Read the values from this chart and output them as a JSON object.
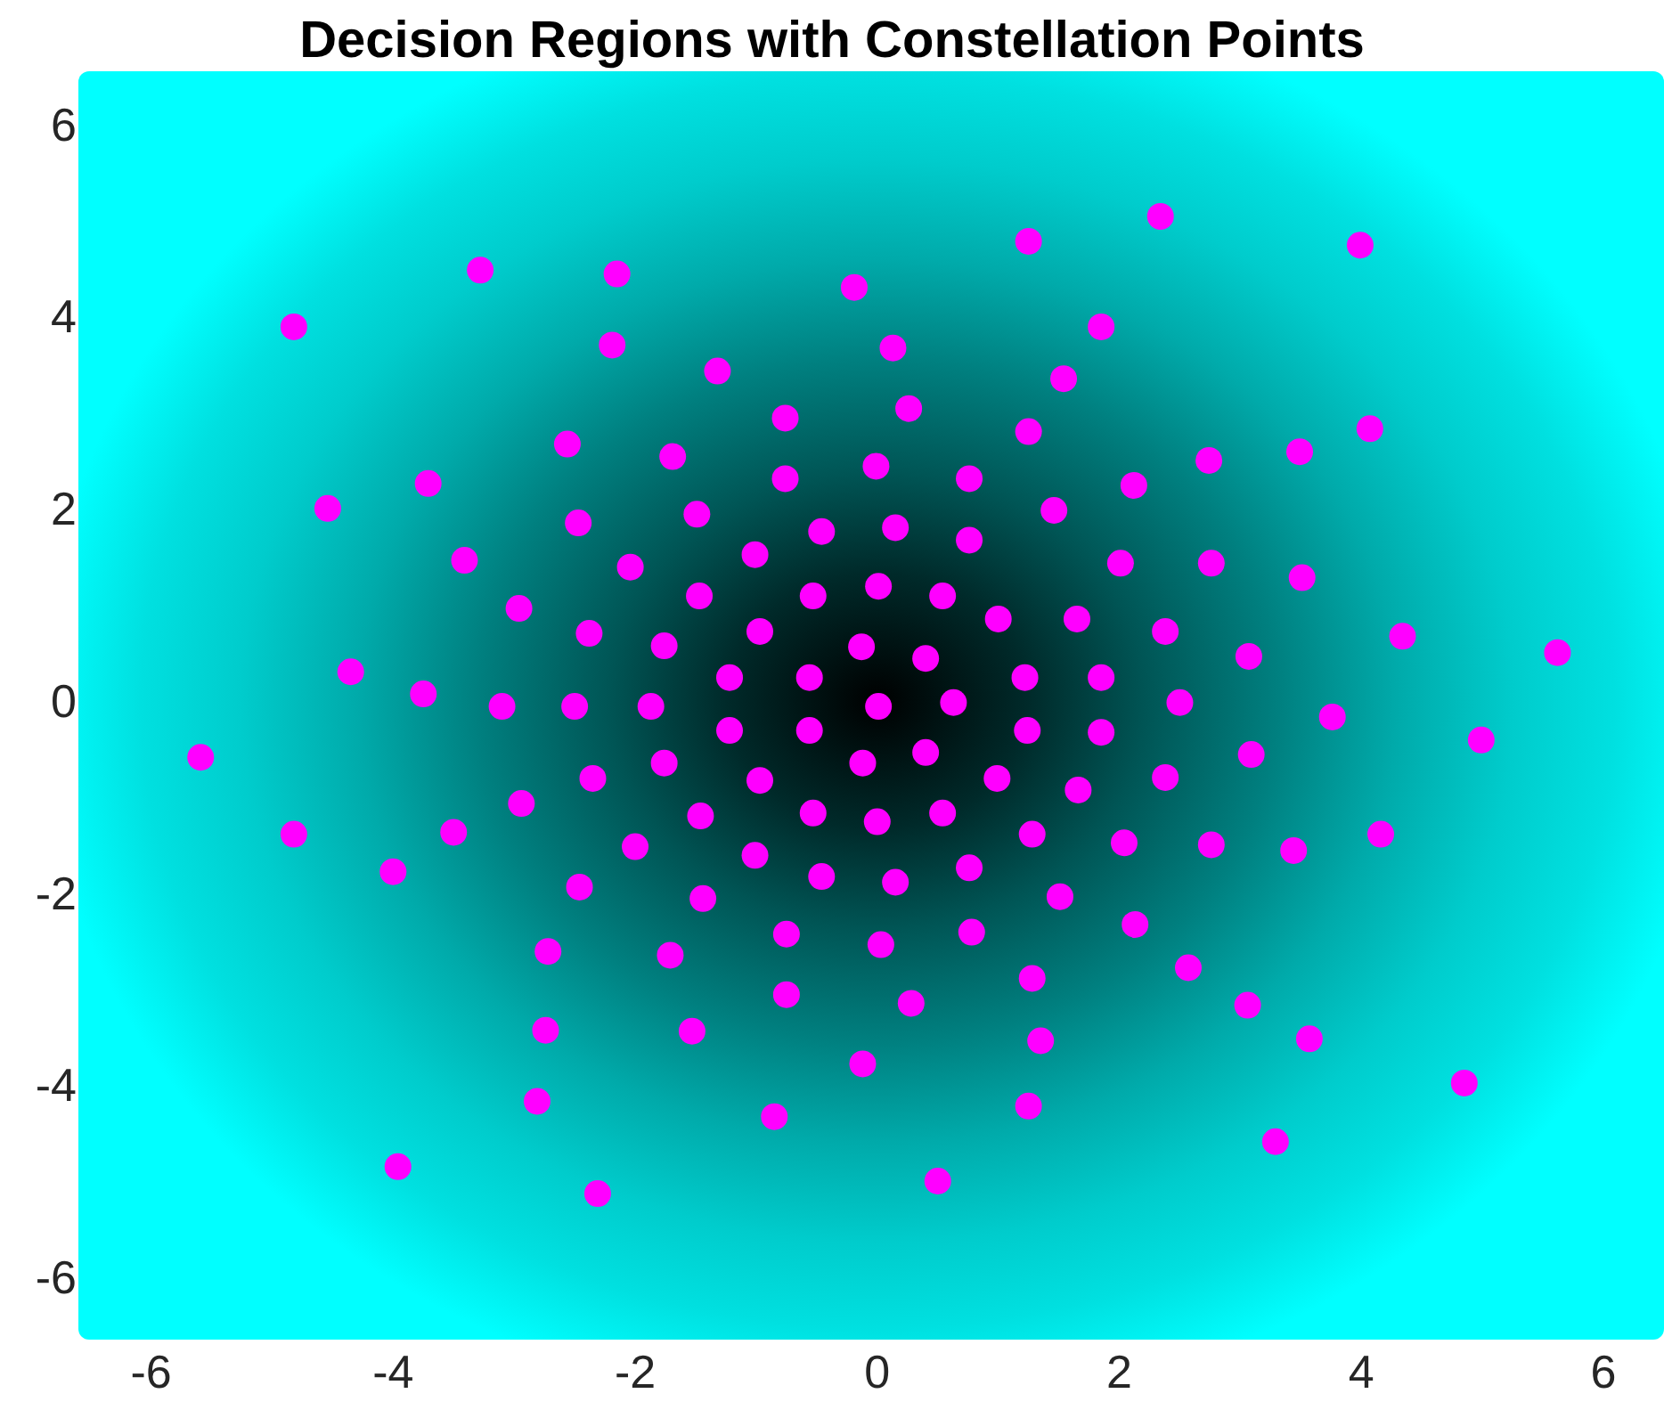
{
  "chart_data": {
    "type": "scatter",
    "title": "Decision Regions with Constellation Points",
    "x": [
      -4.82,
      -3.28,
      -2.15,
      -0.19,
      1.25,
      2.34,
      3.99,
      -2.19,
      -1.32,
      0.13,
      1.85,
      1.54,
      -2.56,
      -1.69,
      -0.76,
      0.26,
      1.25,
      2.74,
      3.49,
      4.07,
      -4.54,
      -3.71,
      -3.41,
      -2.47,
      -2.04,
      -1.49,
      -0.76,
      -0.01,
      0.76,
      1.46,
      2.12,
      0.15,
      -0.46,
      -1.01,
      0.76,
      2.01,
      2.76,
      3.51,
      -2.96,
      -2.38,
      -1.47,
      -1.76,
      -0.97,
      -0.53,
      0.01,
      0.54,
      1.0,
      1.65,
      2.38,
      3.07,
      4.34,
      5.62,
      -4.35,
      -3.75,
      -3.1,
      -2.5,
      -1.87,
      -1.22,
      -0.56,
      -0.13,
      0.4,
      1.22,
      1.85,
      -0.56,
      -1.22,
      0.01,
      0.63,
      1.24,
      1.85,
      2.5,
      3.76,
      4.99,
      -5.59,
      -4.82,
      -4.0,
      -3.5,
      -2.94,
      -2.35,
      -1.76,
      -0.97,
      -0.12,
      0.4,
      0.99,
      1.66,
      2.38,
      3.09,
      4.16,
      -2.0,
      -1.46,
      -1.01,
      -0.53,
      0.0,
      0.54,
      1.28,
      2.04,
      2.76,
      3.44,
      -2.46,
      -1.44,
      -0.46,
      0.15,
      0.76,
      1.51,
      2.13,
      -2.72,
      -1.71,
      -0.75,
      0.03,
      0.78,
      1.28,
      2.57,
      -2.74,
      -1.53,
      -0.75,
      0.28,
      1.35,
      3.06,
      3.57,
      -2.81,
      -0.85,
      -0.12,
      1.25,
      4.85,
      -3.96,
      -2.31,
      0.5,
      3.29
    ],
    "values": [
      3.89,
      4.48,
      4.44,
      4.3,
      4.78,
      5.04,
      4.74,
      3.7,
      3.43,
      3.67,
      3.89,
      3.35,
      2.67,
      2.54,
      2.94,
      3.04,
      2.8,
      2.5,
      2.59,
      2.83,
      2.0,
      2.26,
      1.46,
      1.85,
      1.39,
      1.94,
      2.31,
      2.44,
      2.31,
      1.98,
      2.24,
      1.8,
      1.76,
      1.52,
      1.67,
      1.43,
      1.43,
      1.28,
      0.96,
      0.7,
      1.09,
      0.57,
      0.72,
      1.09,
      1.19,
      1.09,
      0.85,
      0.85,
      0.72,
      0.46,
      0.67,
      0.5,
      0.3,
      0.07,
      -0.06,
      -0.06,
      -0.06,
      0.24,
      0.24,
      0.56,
      0.44,
      0.24,
      0.24,
      -0.31,
      -0.31,
      -0.06,
      -0.02,
      -0.31,
      -0.33,
      -0.02,
      -0.17,
      -0.41,
      -0.59,
      -1.39,
      -1.78,
      -1.37,
      -1.07,
      -0.81,
      -0.65,
      -0.83,
      -0.65,
      -0.54,
      -0.81,
      -0.93,
      -0.8,
      -0.56,
      -1.39,
      -1.52,
      -1.2,
      -1.61,
      -1.17,
      -1.26,
      -1.17,
      -1.39,
      -1.48,
      -1.5,
      -1.56,
      -1.94,
      -2.06,
      -1.83,
      -1.89,
      -1.74,
      -2.04,
      -2.33,
      -2.61,
      -2.65,
      -2.43,
      -2.54,
      -2.41,
      -2.89,
      -2.78,
      -3.43,
      -3.44,
      -3.06,
      -3.15,
      -3.54,
      -3.17,
      -3.52,
      -4.17,
      -4.33,
      -3.78,
      -4.22,
      -3.98,
      -4.85,
      -5.13,
      -5.0,
      -4.59
    ],
    "color": "#ff00ff",
    "marker": "circle",
    "xlim": [
      -6.6,
      6.5
    ],
    "ylim": [
      -6.65,
      6.55
    ],
    "xticks": [
      -6,
      -4,
      -2,
      0,
      2,
      4,
      6
    ],
    "yticks": [
      -6,
      -4,
      -2,
      0,
      2,
      4,
      6
    ]
  }
}
